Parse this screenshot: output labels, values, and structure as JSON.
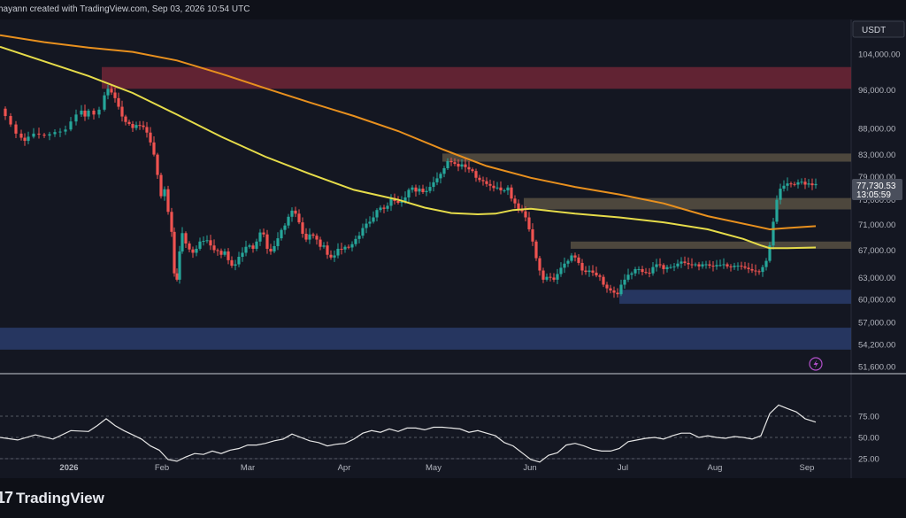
{
  "header": {
    "created_text": "hayann created with TradingView.com, Sep 03, 2026 10:54 UTC"
  },
  "footer": {
    "brand_mark": "17",
    "brand_name": "TradingView"
  },
  "colors": {
    "background": "#141722",
    "ema_orange": "#e8901e",
    "ema_yellow": "#e6dc4a",
    "candle_up": "#26a69a",
    "candle_down": "#ef5350",
    "supply_zone": "#6e2636",
    "resistance_zone": "#5b5445",
    "support_zone": "#2b3f70",
    "rsi_line": "#e6e6e6"
  },
  "chart_data": {
    "type": "candlestick",
    "quote_currency": "USDT",
    "current_price": "77,730.53",
    "countdown": "13:05:59",
    "price_axis_labels": [
      "104,000.00",
      "96,000.00",
      "88,000.00",
      "83,000.00",
      "79,000.00",
      "75,000.00",
      "71,000.00",
      "67,000.00",
      "63,000.00",
      "60,000.00",
      "57,000.00",
      "54,200.00",
      "51,600.00"
    ],
    "price_axis_values": [
      104000,
      96000,
      88000,
      83000,
      79000,
      75000,
      71000,
      67000,
      63000,
      60000,
      57000,
      54200,
      51600
    ],
    "time_axis_labels": [
      "2026",
      "Feb",
      "Mar",
      "Apr",
      "May",
      "Jun",
      "Jul",
      "Aug",
      "Sep"
    ],
    "rsi_axis_labels": [
      "75.00",
      "50.00",
      "25.00"
    ],
    "rsi_axis_values": [
      75,
      50,
      25
    ],
    "ylim": [
      51000,
      108000
    ],
    "rsi_ylim": [
      0,
      100
    ],
    "price_path": [
      [
        0,
        92000
      ],
      [
        6,
        90500
      ],
      [
        12,
        88800
      ],
      [
        18,
        87000
      ],
      [
        24,
        86200
      ],
      [
        28,
        85600
      ],
      [
        32,
        86400
      ],
      [
        38,
        87000
      ],
      [
        44,
        86800
      ],
      [
        50,
        86600
      ],
      [
        56,
        86900
      ],
      [
        62,
        87300
      ],
      [
        68,
        87400
      ],
      [
        74,
        87800
      ],
      [
        80,
        89400
      ],
      [
        86,
        90800
      ],
      [
        92,
        91600
      ],
      [
        96,
        90400
      ],
      [
        100,
        91600
      ],
      [
        106,
        90800
      ],
      [
        112,
        91800
      ],
      [
        118,
        94800
      ],
      [
        122,
        96200
      ],
      [
        126,
        95400
      ],
      [
        130,
        94200
      ],
      [
        134,
        92400
      ],
      [
        138,
        90400
      ],
      [
        142,
        89300
      ],
      [
        146,
        88900
      ],
      [
        150,
        88100
      ],
      [
        154,
        88700
      ],
      [
        158,
        88600
      ],
      [
        162,
        88300
      ],
      [
        166,
        87200
      ],
      [
        170,
        85300
      ],
      [
        174,
        83000
      ],
      [
        178,
        79300
      ],
      [
        182,
        75600
      ],
      [
        186,
        76800
      ],
      [
        190,
        73000
      ],
      [
        194,
        69800
      ],
      [
        197,
        63600
      ],
      [
        200,
        62700
      ],
      [
        203,
        66800
      ],
      [
        206,
        69600
      ],
      [
        210,
        68000
      ],
      [
        214,
        67100
      ],
      [
        218,
        66600
      ],
      [
        222,
        67200
      ],
      [
        226,
        68300
      ],
      [
        230,
        68400
      ],
      [
        234,
        68500
      ],
      [
        238,
        67700
      ],
      [
        242,
        67000
      ],
      [
        246,
        66900
      ],
      [
        250,
        66300
      ],
      [
        254,
        66800
      ],
      [
        258,
        65500
      ],
      [
        262,
        64700
      ],
      [
        266,
        64900
      ],
      [
        270,
        66000
      ],
      [
        274,
        66600
      ],
      [
        278,
        67500
      ],
      [
        282,
        67700
      ],
      [
        286,
        67200
      ],
      [
        290,
        68300
      ],
      [
        294,
        69700
      ],
      [
        298,
        69400
      ],
      [
        302,
        67200
      ],
      [
        306,
        66800
      ],
      [
        310,
        67600
      ],
      [
        314,
        68800
      ],
      [
        318,
        70100
      ],
      [
        322,
        70800
      ],
      [
        326,
        72200
      ],
      [
        330,
        73200
      ],
      [
        334,
        72700
      ],
      [
        338,
        71300
      ],
      [
        342,
        69500
      ],
      [
        346,
        68600
      ],
      [
        350,
        69400
      ],
      [
        354,
        69200
      ],
      [
        358,
        68600
      ],
      [
        362,
        67500
      ],
      [
        366,
        67700
      ],
      [
        370,
        66300
      ],
      [
        374,
        65900
      ],
      [
        378,
        66200
      ],
      [
        382,
        67200
      ],
      [
        386,
        67100
      ],
      [
        390,
        67500
      ],
      [
        394,
        67400
      ],
      [
        398,
        67900
      ],
      [
        402,
        68700
      ],
      [
        406,
        69200
      ],
      [
        410,
        70400
      ],
      [
        414,
        71100
      ],
      [
        418,
        71400
      ],
      [
        422,
        72100
      ],
      [
        426,
        73300
      ],
      [
        430,
        73700
      ],
      [
        434,
        73500
      ],
      [
        438,
        74000
      ],
      [
        442,
        75300
      ],
      [
        446,
        74800
      ],
      [
        450,
        74500
      ],
      [
        454,
        74700
      ],
      [
        458,
        75400
      ],
      [
        462,
        76700
      ],
      [
        466,
        77100
      ],
      [
        470,
        76400
      ],
      [
        474,
        76900
      ],
      [
        478,
        76300
      ],
      [
        482,
        76500
      ],
      [
        486,
        77200
      ],
      [
        490,
        78000
      ],
      [
        494,
        78700
      ],
      [
        498,
        79500
      ],
      [
        502,
        80500
      ],
      [
        506,
        81800
      ],
      [
        510,
        81600
      ],
      [
        514,
        81300
      ],
      [
        518,
        80800
      ],
      [
        522,
        81200
      ],
      [
        526,
        80700
      ],
      [
        530,
        80300
      ],
      [
        534,
        80000
      ],
      [
        538,
        78800
      ],
      [
        542,
        78400
      ],
      [
        546,
        78200
      ],
      [
        550,
        77700
      ],
      [
        554,
        77400
      ],
      [
        558,
        77000
      ],
      [
        562,
        77100
      ],
      [
        566,
        76600
      ],
      [
        570,
        76600
      ],
      [
        574,
        77100
      ],
      [
        578,
        75200
      ],
      [
        582,
        74400
      ],
      [
        586,
        73400
      ],
      [
        590,
        73100
      ],
      [
        594,
        72100
      ],
      [
        598,
        70200
      ],
      [
        602,
        68300
      ],
      [
        606,
        65800
      ],
      [
        610,
        64000
      ],
      [
        614,
        62700
      ],
      [
        618,
        63100
      ],
      [
        622,
        63000
      ],
      [
        626,
        62700
      ],
      [
        630,
        63500
      ],
      [
        634,
        64400
      ],
      [
        638,
        65000
      ],
      [
        642,
        65400
      ],
      [
        646,
        66200
      ],
      [
        650,
        65900
      ],
      [
        654,
        65100
      ],
      [
        658,
        64000
      ],
      [
        662,
        63800
      ],
      [
        666,
        64000
      ],
      [
        670,
        63700
      ],
      [
        674,
        63300
      ],
      [
        678,
        63100
      ],
      [
        682,
        62000
      ],
      [
        686,
        61500
      ],
      [
        690,
        61200
      ],
      [
        694,
        60900
      ],
      [
        698,
        60700
      ],
      [
        702,
        62000
      ],
      [
        706,
        62700
      ],
      [
        710,
        63400
      ],
      [
        714,
        63600
      ],
      [
        718,
        64200
      ],
      [
        722,
        64200
      ],
      [
        726,
        63800
      ],
      [
        730,
        63700
      ],
      [
        734,
        63600
      ],
      [
        738,
        64500
      ],
      [
        742,
        64900
      ],
      [
        746,
        64800
      ],
      [
        750,
        64200
      ],
      [
        754,
        64500
      ],
      [
        758,
        64500
      ],
      [
        762,
        64600
      ],
      [
        766,
        65000
      ],
      [
        770,
        65300
      ],
      [
        774,
        65100
      ],
      [
        778,
        64900
      ],
      [
        782,
        64800
      ],
      [
        786,
        64900
      ],
      [
        790,
        64600
      ],
      [
        794,
        64900
      ],
      [
        798,
        64900
      ],
      [
        802,
        64700
      ],
      [
        806,
        64600
      ],
      [
        810,
        64800
      ],
      [
        814,
        64800
      ],
      [
        818,
        64900
      ],
      [
        822,
        64600
      ],
      [
        826,
        64500
      ],
      [
        830,
        64700
      ],
      [
        834,
        64700
      ],
      [
        838,
        64600
      ],
      [
        842,
        64400
      ],
      [
        846,
        64200
      ],
      [
        850,
        64000
      ],
      [
        854,
        63900
      ],
      [
        858,
        63800
      ],
      [
        862,
        64500
      ],
      [
        866,
        65400
      ],
      [
        870,
        67700
      ],
      [
        874,
        71400
      ],
      [
        878,
        75000
      ],
      [
        882,
        76900
      ],
      [
        886,
        77400
      ],
      [
        890,
        77800
      ],
      [
        894,
        77700
      ],
      [
        898,
        77600
      ],
      [
        902,
        78000
      ],
      [
        906,
        78100
      ],
      [
        910,
        77600
      ],
      [
        914,
        77800
      ],
      [
        918,
        77500
      ],
      [
        922,
        77700
      ]
    ],
    "ema_orange": [
      [
        0,
        108500
      ],
      [
        50,
        106800
      ],
      [
        100,
        105500
      ],
      [
        150,
        104500
      ],
      [
        200,
        102500
      ],
      [
        250,
        99500
      ],
      [
        300,
        96300
      ],
      [
        350,
        93300
      ],
      [
        400,
        90500
      ],
      [
        450,
        87500
      ],
      [
        500,
        84000
      ],
      [
        550,
        80900
      ],
      [
        600,
        78800
      ],
      [
        650,
        77200
      ],
      [
        700,
        75900
      ],
      [
        750,
        74400
      ],
      [
        800,
        72300
      ],
      [
        850,
        70800
      ],
      [
        870,
        70200
      ],
      [
        890,
        70400
      ],
      [
        922,
        70700
      ]
    ],
    "ema_yellow": [
      [
        0,
        105700
      ],
      [
        50,
        102300
      ],
      [
        100,
        99000
      ],
      [
        150,
        95300
      ],
      [
        200,
        90800
      ],
      [
        250,
        86400
      ],
      [
        300,
        82600
      ],
      [
        350,
        79500
      ],
      [
        400,
        76700
      ],
      [
        450,
        75000
      ],
      [
        480,
        73700
      ],
      [
        510,
        72800
      ],
      [
        540,
        72600
      ],
      [
        560,
        72700
      ],
      [
        580,
        73300
      ],
      [
        600,
        73500
      ],
      [
        650,
        72700
      ],
      [
        700,
        72100
      ],
      [
        750,
        71300
      ],
      [
        800,
        70200
      ],
      [
        840,
        68700
      ],
      [
        860,
        67700
      ],
      [
        870,
        67300
      ],
      [
        890,
        67300
      ],
      [
        922,
        67400
      ]
    ],
    "zones": [
      {
        "kind": "supply",
        "from": 96200,
        "to": 101000,
        "x0": 115,
        "x1": 962
      },
      {
        "kind": "resistance",
        "from": 81700,
        "to": 83200,
        "x0": 500,
        "x1": 962
      },
      {
        "kind": "resistance",
        "from": 73400,
        "to": 75300,
        "x0": 592,
        "x1": 962
      },
      {
        "kind": "resistance",
        "from": 67200,
        "to": 68300,
        "x0": 645,
        "x1": 962
      },
      {
        "kind": "support",
        "from": 59400,
        "to": 61300,
        "x0": 700,
        "x1": 962
      },
      {
        "kind": "support",
        "from": 53600,
        "to": 56300,
        "x0": 0,
        "x1": 962
      }
    ],
    "rsi": [
      [
        0,
        50
      ],
      [
        20,
        47
      ],
      [
        40,
        53
      ],
      [
        60,
        48
      ],
      [
        80,
        58
      ],
      [
        100,
        57
      ],
      [
        110,
        64
      ],
      [
        120,
        72
      ],
      [
        130,
        64
      ],
      [
        140,
        58
      ],
      [
        150,
        53
      ],
      [
        160,
        48
      ],
      [
        170,
        40
      ],
      [
        180,
        35
      ],
      [
        190,
        24
      ],
      [
        200,
        22
      ],
      [
        210,
        27
      ],
      [
        220,
        31
      ],
      [
        230,
        30
      ],
      [
        240,
        34
      ],
      [
        250,
        31
      ],
      [
        260,
        35
      ],
      [
        270,
        37
      ],
      [
        280,
        41
      ],
      [
        290,
        41
      ],
      [
        300,
        43
      ],
      [
        310,
        46
      ],
      [
        320,
        48
      ],
      [
        330,
        54
      ],
      [
        340,
        50
      ],
      [
        350,
        46
      ],
      [
        360,
        44
      ],
      [
        370,
        40
      ],
      [
        380,
        42
      ],
      [
        390,
        43
      ],
      [
        400,
        48
      ],
      [
        410,
        55
      ],
      [
        420,
        58
      ],
      [
        430,
        56
      ],
      [
        440,
        60
      ],
      [
        450,
        57
      ],
      [
        460,
        61
      ],
      [
        470,
        61
      ],
      [
        480,
        59
      ],
      [
        490,
        62
      ],
      [
        500,
        62
      ],
      [
        510,
        61
      ],
      [
        520,
        60
      ],
      [
        530,
        56
      ],
      [
        540,
        58
      ],
      [
        550,
        55
      ],
      [
        560,
        52
      ],
      [
        570,
        44
      ],
      [
        580,
        40
      ],
      [
        590,
        32
      ],
      [
        600,
        24
      ],
      [
        610,
        21
      ],
      [
        620,
        29
      ],
      [
        630,
        32
      ],
      [
        640,
        41
      ],
      [
        650,
        43
      ],
      [
        660,
        40
      ],
      [
        670,
        36
      ],
      [
        680,
        34
      ],
      [
        690,
        34
      ],
      [
        700,
        37
      ],
      [
        710,
        45
      ],
      [
        720,
        47
      ],
      [
        730,
        49
      ],
      [
        740,
        50
      ],
      [
        750,
        48
      ],
      [
        760,
        52
      ],
      [
        770,
        55
      ],
      [
        780,
        55
      ],
      [
        790,
        50
      ],
      [
        800,
        52
      ],
      [
        810,
        50
      ],
      [
        820,
        49
      ],
      [
        830,
        51
      ],
      [
        840,
        50
      ],
      [
        850,
        48
      ],
      [
        860,
        52
      ],
      [
        870,
        78
      ],
      [
        880,
        88
      ],
      [
        890,
        84
      ],
      [
        900,
        80
      ],
      [
        910,
        72
      ],
      [
        922,
        68
      ]
    ]
  }
}
